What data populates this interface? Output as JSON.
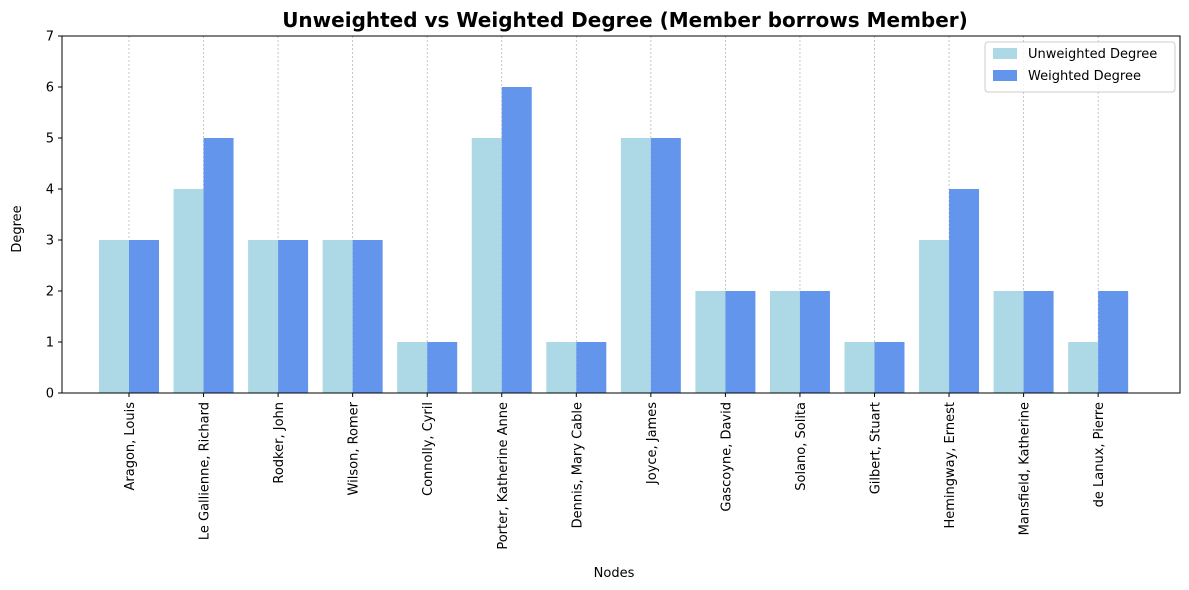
{
  "chart_data": {
    "type": "bar",
    "title": "Unweighted vs Weighted Degree (Member borrows Member)",
    "xlabel": "Nodes",
    "ylabel": "Degree",
    "ylim": [
      0,
      7
    ],
    "yticks": [
      "0",
      "1",
      "2",
      "3",
      "4",
      "5",
      "6",
      "7"
    ],
    "grid": "vertical dashed at categories",
    "legend_position": "top-right",
    "categories": [
      "Aragon, Louis",
      "Le Gallienne, Richard",
      "Rodker, John",
      "Wilson, Romer",
      "Connolly, Cyril",
      "Porter, Katherine Anne",
      "Dennis, Mary Cable",
      "Joyce, James",
      "Gascoyne, David",
      "Solano, Solita",
      "Gilbert, Stuart",
      "Hemingway, Ernest",
      "Mansfield, Katherine",
      "de Lanux, Pierre"
    ],
    "series": [
      {
        "name": "Unweighted Degree",
        "color": "#add8e6",
        "values": [
          3,
          4,
          3,
          3,
          1,
          5,
          1,
          5,
          2,
          2,
          1,
          3,
          2,
          1
        ]
      },
      {
        "name": "Weighted Degree",
        "color": "#6495ed",
        "values": [
          3,
          5,
          3,
          3,
          1,
          6,
          1,
          5,
          2,
          2,
          1,
          4,
          2,
          2
        ]
      }
    ]
  }
}
